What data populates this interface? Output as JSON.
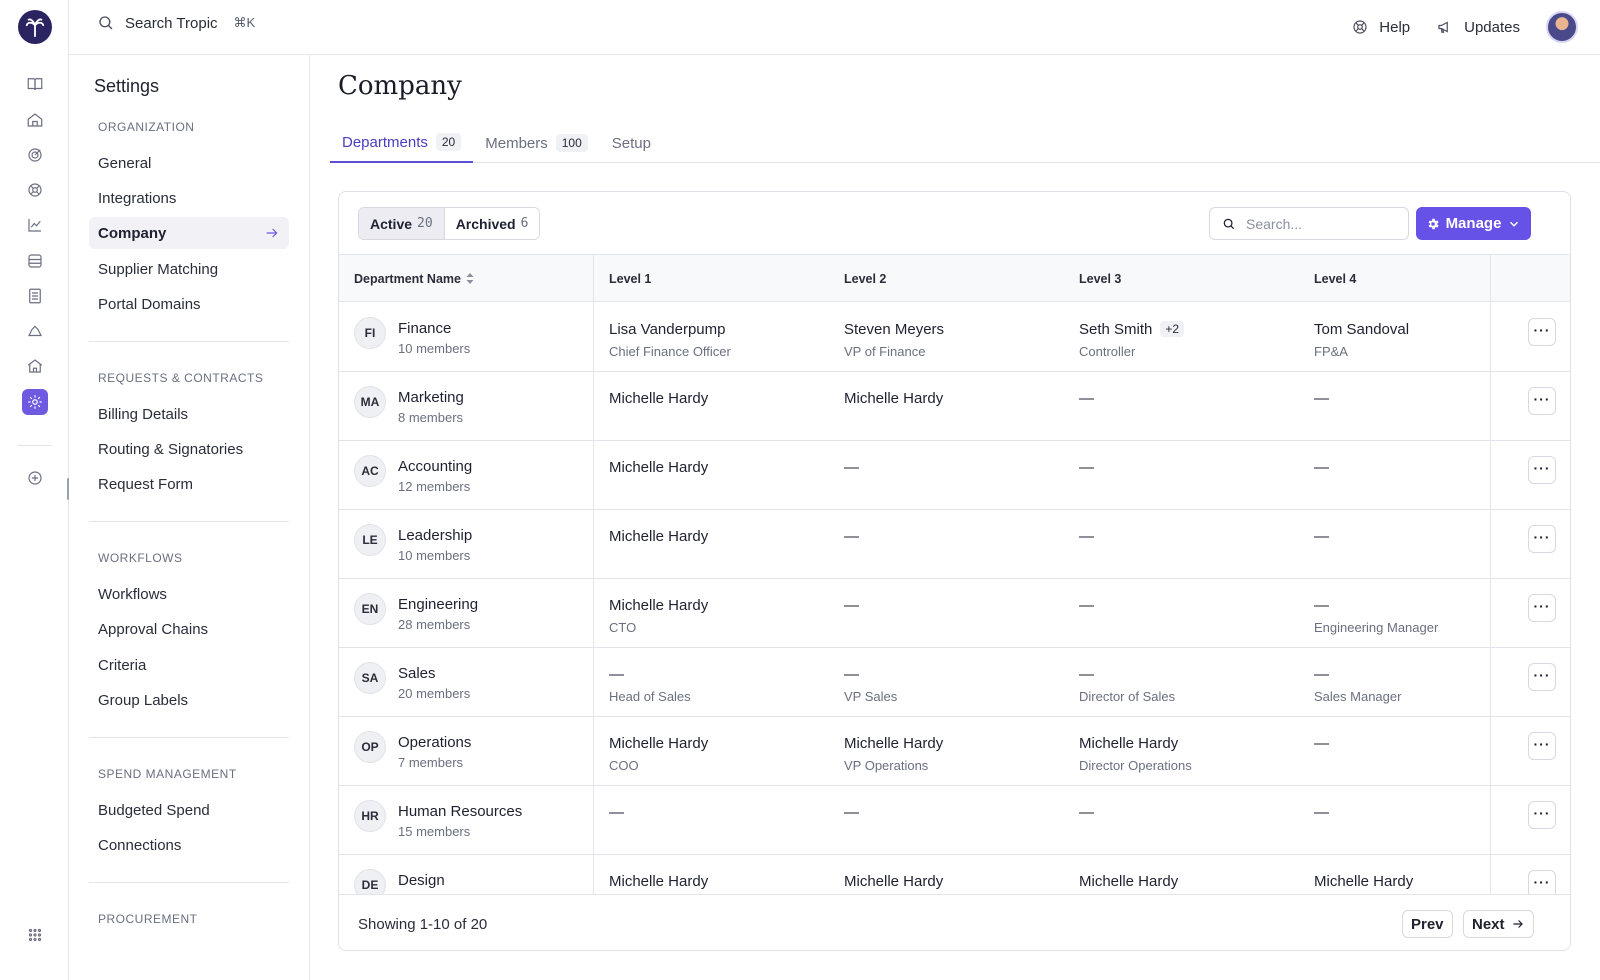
{
  "topbar": {
    "search_label": "Search Tropic",
    "shortcut": "⌘K",
    "help_label": "Help",
    "updates_label": "Updates"
  },
  "settings_nav": {
    "title": "Settings",
    "sections": [
      {
        "header": "ORGANIZATION",
        "items": [
          "General",
          "Integrations",
          "Company",
          "Supplier Matching",
          "Portal Domains"
        ]
      },
      {
        "header": "REQUESTS & CONTRACTS",
        "items": [
          "Billing Details",
          "Routing & Signatories",
          "Request Form"
        ]
      },
      {
        "header": "WORKFLOWS",
        "items": [
          "Workflows",
          "Approval Chains",
          "Criteria",
          "Group Labels"
        ]
      },
      {
        "header": "SPEND MANAGEMENT",
        "items": [
          "Budgeted Spend",
          "Connections"
        ]
      },
      {
        "header": "PROCUREMENT",
        "items": []
      }
    ],
    "active_item": "Company"
  },
  "page": {
    "title": "Company",
    "tabs": [
      {
        "label": "Departments",
        "count": "20"
      },
      {
        "label": "Members",
        "count": "100"
      },
      {
        "label": "Setup",
        "count": ""
      }
    ],
    "active_tab": "Departments"
  },
  "filters": {
    "active_label": "Active",
    "active_count": "20",
    "archived_label": "Archived",
    "archived_count": "6",
    "search_placeholder": "Search...",
    "manage_label": "Manage"
  },
  "table": {
    "columns": [
      "Department Name",
      "Level 1",
      "Level 2",
      "Level 3",
      "Level 4"
    ],
    "rows": [
      {
        "initials": "FI",
        "name": "Finance",
        "members": "10 members",
        "l1": "Lisa Vanderpump",
        "l1t": "Chief Finance Officer",
        "l2": "Steven Meyers",
        "l2t": "VP of Finance",
        "l3": "Seth Smith",
        "l3t": "Controller",
        "l3extra": "+2",
        "l4": "Tom Sandoval",
        "l4t": "FP&A"
      },
      {
        "initials": "MA",
        "name": "Marketing",
        "members": "8 members",
        "l1": "Michelle Hardy",
        "l1t": "",
        "l2": "Michelle Hardy",
        "l2t": "",
        "l3": "—",
        "l3t": "",
        "l3extra": "",
        "l4": "—",
        "l4t": ""
      },
      {
        "initials": "AC",
        "name": "Accounting",
        "members": "12 members",
        "l1": "Michelle Hardy",
        "l1t": "",
        "l2": "—",
        "l2t": "",
        "l3": "—",
        "l3t": "",
        "l3extra": "",
        "l4": "—",
        "l4t": ""
      },
      {
        "initials": "LE",
        "name": "Leadership",
        "members": "10 members",
        "l1": "Michelle Hardy",
        "l1t": "",
        "l2": "—",
        "l2t": "",
        "l3": "—",
        "l3t": "",
        "l3extra": "",
        "l4": "—",
        "l4t": ""
      },
      {
        "initials": "EN",
        "name": "Engineering",
        "members": "28 members",
        "l1": "Michelle Hardy",
        "l1t": "CTO",
        "l2": "—",
        "l2t": "",
        "l3": "—",
        "l3t": "",
        "l3extra": "",
        "l4": "—",
        "l4t": "Engineering Manager"
      },
      {
        "initials": "SA",
        "name": "Sales",
        "members": "20 members",
        "l1": "—",
        "l1t": "Head of Sales",
        "l2": "—",
        "l2t": "VP Sales",
        "l3": "—",
        "l3t": "Director of Sales",
        "l3extra": "",
        "l4": "—",
        "l4t": "Sales Manager"
      },
      {
        "initials": "OP",
        "name": "Operations",
        "members": "7 members",
        "l1": "Michelle Hardy",
        "l1t": "COO",
        "l2": "Michelle Hardy",
        "l2t": "VP Operations",
        "l3": "Michelle Hardy",
        "l3t": "Director Operations",
        "l3extra": "",
        "l4": "—",
        "l4t": ""
      },
      {
        "initials": "HR",
        "name": "Human Resources",
        "members": "15 members",
        "l1": "—",
        "l1t": "",
        "l2": "—",
        "l2t": "",
        "l3": "—",
        "l3t": "",
        "l3extra": "",
        "l4": "—",
        "l4t": ""
      },
      {
        "initials": "DE",
        "name": "Design",
        "members": "",
        "l1": "Michelle Hardy",
        "l1t": "",
        "l2": "Michelle Hardy",
        "l2t": "",
        "l3": "Michelle Hardy",
        "l3t": "",
        "l3extra": "",
        "l4": "Michelle Hardy",
        "l4t": ""
      }
    ],
    "more_label": "···"
  },
  "footer": {
    "showing": "Showing 1-10 of 20",
    "prev_label": "Prev",
    "next_label": "Next"
  },
  "colors": {
    "accent": "#6652e6",
    "tab_active": "#4a3ec4",
    "logo_bg": "#2a2460"
  }
}
